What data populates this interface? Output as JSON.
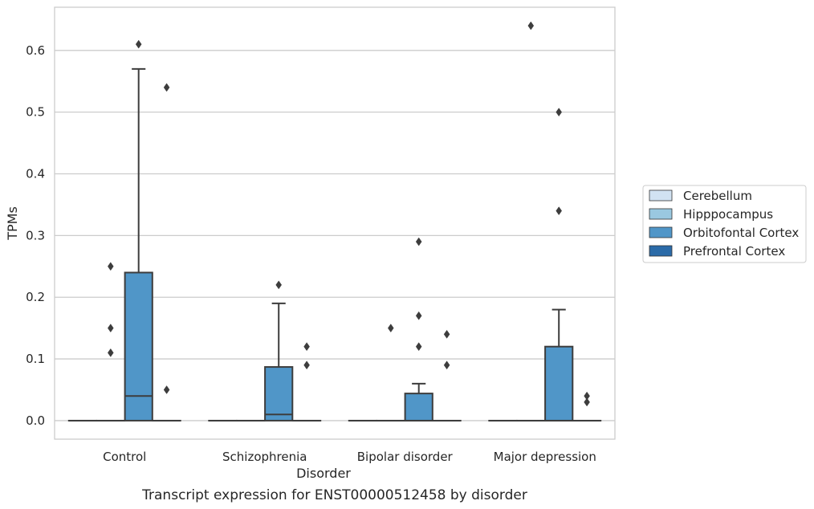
{
  "chart_data": {
    "type": "box",
    "caption": "Transcript expression for ENST00000512458 by disorder",
    "xlabel": "Disorder",
    "ylabel": "TPMs",
    "ylim": [
      -0.03,
      0.67
    ],
    "yticks": [
      0.0,
      0.1,
      0.2,
      0.3,
      0.4,
      0.5,
      0.6
    ],
    "ytick_labels": [
      "0.0",
      "0.1",
      "0.2",
      "0.3",
      "0.4",
      "0.5",
      "0.6"
    ],
    "grid": "horizontal",
    "legend_position": "right",
    "categories": [
      "Control",
      "Schizophrenia",
      "Bipolar disorder",
      "Major depression"
    ],
    "series": [
      {
        "name": "Cerebellum",
        "color": "#d1e2f2",
        "boxes": [
          {
            "q1": 0,
            "median": 0,
            "q3": 0,
            "whisker_low": 0,
            "whisker_high": 0,
            "outliers": []
          },
          {
            "q1": 0,
            "median": 0,
            "q3": 0,
            "whisker_low": 0,
            "whisker_high": 0,
            "outliers": []
          },
          {
            "q1": 0,
            "median": 0,
            "q3": 0,
            "whisker_low": 0,
            "whisker_high": 0,
            "outliers": []
          },
          {
            "q1": 0,
            "median": 0,
            "q3": 0,
            "whisker_low": 0,
            "whisker_high": 0,
            "outliers": []
          }
        ]
      },
      {
        "name": "Hipppocampus",
        "color": "#9ac8e0",
        "boxes": [
          {
            "q1": 0,
            "median": 0,
            "q3": 0,
            "whisker_low": 0,
            "whisker_high": 0,
            "outliers": [
              0.25,
              0.15,
              0.11
            ]
          },
          {
            "q1": 0,
            "median": 0,
            "q3": 0,
            "whisker_low": 0,
            "whisker_high": 0,
            "outliers": []
          },
          {
            "q1": 0,
            "median": 0,
            "q3": 0,
            "whisker_low": 0,
            "whisker_high": 0,
            "outliers": [
              0.15
            ]
          },
          {
            "q1": 0,
            "median": 0,
            "q3": 0,
            "whisker_low": 0,
            "whisker_high": 0,
            "outliers": [
              0.64
            ]
          }
        ]
      },
      {
        "name": "Orbitofontal Cortex",
        "color": "#5096c8",
        "boxes": [
          {
            "q1": 0,
            "median": 0.04,
            "q3": 0.24,
            "whisker_low": 0,
            "whisker_high": 0.57,
            "outliers": [
              0.61
            ]
          },
          {
            "q1": 0,
            "median": 0.01,
            "q3": 0.087,
            "whisker_low": 0,
            "whisker_high": 0.19,
            "outliers": [
              0.22
            ]
          },
          {
            "q1": 0,
            "median": 0,
            "q3": 0.044,
            "whisker_low": 0,
            "whisker_high": 0.06,
            "outliers": [
              0.29,
              0.17,
              0.12
            ]
          },
          {
            "q1": 0,
            "median": 0,
            "q3": 0.12,
            "whisker_low": 0,
            "whisker_high": 0.18,
            "outliers": [
              0.5,
              0.34
            ]
          }
        ]
      },
      {
        "name": "Prefrontal Cortex",
        "color": "#2b6ba8",
        "boxes": [
          {
            "q1": 0,
            "median": 0,
            "q3": 0,
            "whisker_low": 0,
            "whisker_high": 0,
            "outliers": [
              0.54,
              0.05
            ]
          },
          {
            "q1": 0,
            "median": 0,
            "q3": 0,
            "whisker_low": 0,
            "whisker_high": 0,
            "outliers": [
              0.12,
              0.09
            ]
          },
          {
            "q1": 0,
            "median": 0,
            "q3": 0,
            "whisker_low": 0,
            "whisker_high": 0,
            "outliers": [
              0.14,
              0.09
            ]
          },
          {
            "q1": 0,
            "median": 0,
            "q3": 0,
            "whisker_low": 0,
            "whisker_high": 0,
            "outliers": [
              0.04,
              0.03
            ]
          }
        ]
      }
    ]
  }
}
